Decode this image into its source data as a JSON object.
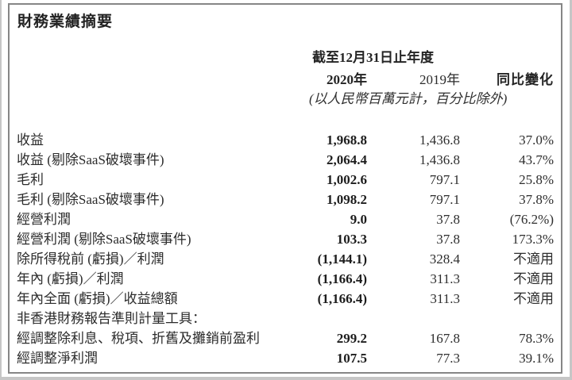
{
  "page": {
    "title": "財務業績摘要"
  },
  "table": {
    "period_header": "截至12月31日止年度",
    "columns": [
      {
        "label": "2020年"
      },
      {
        "label": "2019年"
      },
      {
        "label": "同比變化"
      }
    ],
    "unit_note": "(以人民幣百萬元計，百分比除外)",
    "rows": [
      {
        "label": "收益",
        "y2020": "1,968.8",
        "y2019": "1,436.8",
        "yoy": "37.0%"
      },
      {
        "label": "收益 (剔除SaaS破壞事件)",
        "y2020": "2,064.4",
        "y2019": "1,436.8",
        "yoy": "43.7%"
      },
      {
        "label": "毛利",
        "y2020": "1,002.6",
        "y2019": "797.1",
        "yoy": "25.8%"
      },
      {
        "label": "毛利 (剔除SaaS破壞事件)",
        "y2020": "1,098.2",
        "y2019": "797.1",
        "yoy": "37.8%"
      },
      {
        "label": "經營利潤",
        "y2020": "9.0",
        "y2019": "37.8",
        "yoy": "(76.2%)"
      },
      {
        "label": "經營利潤 (剔除SaaS破壞事件)",
        "y2020": "103.3",
        "y2019": "37.8",
        "yoy": "173.3%"
      },
      {
        "label": "除所得稅前 (虧損)／利潤",
        "y2020": "(1,144.1)",
        "y2019": "328.4",
        "yoy": "不適用"
      },
      {
        "label": "年內 (虧損)／利潤",
        "y2020": "(1,166.4)",
        "y2019": "311.3",
        "yoy": "不適用"
      },
      {
        "label": "年內全面 (虧損)／收益總額",
        "y2020": "(1,166.4)",
        "y2019": "311.3",
        "yoy": "不適用"
      },
      {
        "label": "非香港財務報告準則計量工具：",
        "y2020": "",
        "y2019": "",
        "yoy": ""
      },
      {
        "label": "經調整除利息、稅項、折舊及攤銷前盈利",
        "y2020": "299.2",
        "y2019": "167.8",
        "yoy": "78.3%"
      },
      {
        "label": "經調整淨利潤",
        "y2020": "107.5",
        "y2019": "77.3",
        "yoy": "39.1%"
      }
    ]
  },
  "colors": {
    "panel_border": "#868686",
    "text": "#2b2b2b",
    "bold_text": "#1d1d1d"
  }
}
